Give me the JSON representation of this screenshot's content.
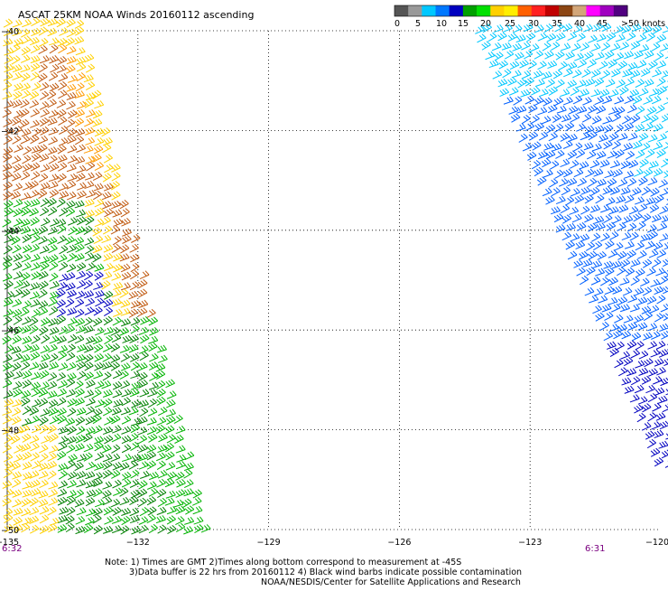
{
  "title": "ASCAT 25KM NOAA Winds 20160112 ascending",
  "legend": {
    "colors": [
      "#555555",
      "#999999",
      "#00c8ff",
      "#0078ff",
      "#0000c0",
      "#00a000",
      "#00e000",
      "#ffd000",
      "#ffee00",
      "#ff6000",
      "#ff2020",
      "#c00000",
      "#8b4513",
      "#d2a679",
      "#ff00ff",
      "#a000c0",
      "#500080"
    ],
    "labels": [
      "0",
      "5",
      "10",
      "15",
      "20",
      "25",
      "30",
      "35",
      "40",
      "45",
      ">50 knots"
    ]
  },
  "axes": {
    "x_ticks": [
      "-135",
      "-132",
      "-129",
      "-126",
      "-123",
      "-120"
    ],
    "y_ticks": [
      "-40",
      "-42",
      "-44",
      "-46",
      "-48",
      "-50"
    ],
    "lon_range": [
      -135,
      -120
    ],
    "lat_range": [
      -40,
      -50
    ]
  },
  "time_labels": {
    "left": "6:32",
    "right": "6:31"
  },
  "notes": [
    "Note:  1) Times are GMT  2)Times along bottom correspond to measurement at  -45S",
    "3)Data buffer is 22 hrs from 20160112  4) Black wind barbs indicate possible contamination",
    "NOAA/NESDIS/Center for Satellite Applications and Research"
  ],
  "wind_field": {
    "colors": {
      "cyan": "#00c8ff",
      "blue": "#0060ff",
      "darkblue": "#0000c0",
      "green": "#00b400",
      "darkgreen": "#008000",
      "yellow": "#ffd000",
      "orange": "#ff9a00",
      "brown": "#c05a10"
    }
  }
}
